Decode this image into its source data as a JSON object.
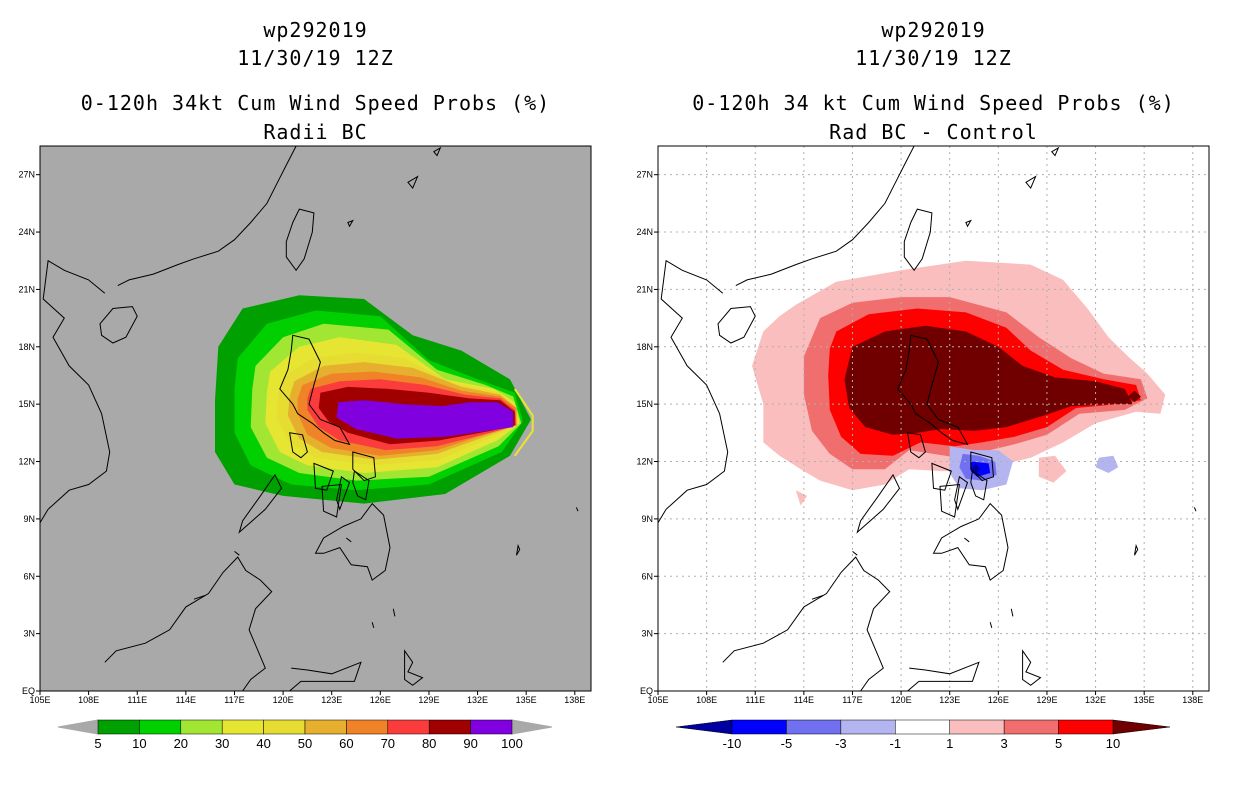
{
  "left_panel": {
    "storm_id": "wp292019",
    "date": "11/30/19 12Z",
    "title": "0-120h 34kt Cum Wind Speed Probs (%)",
    "subtitle": "Radii BC"
  },
  "right_panel": {
    "storm_id": "wp292019",
    "date": "11/30/19 12Z",
    "title": "0-120h 34 kt Cum Wind Speed Probs (%)",
    "subtitle": "Rad BC - Control"
  },
  "chart_data": [
    {
      "type": "heatmap",
      "title": "0-120h 34kt Cum Wind Speed Probs (%)",
      "subtitle": "Radii BC",
      "x_ticks": [
        "105E",
        "108E",
        "111E",
        "114E",
        "117E",
        "120E",
        "123E",
        "126E",
        "129E",
        "132E",
        "135E",
        "138E"
      ],
      "y_ticks": [
        "EQ",
        "3N",
        "6N",
        "9N",
        "12N",
        "15N",
        "18N",
        "21N",
        "24N",
        "27N"
      ],
      "xlim": [
        105,
        139
      ],
      "ylim": [
        0,
        28.5
      ],
      "background": "#a9a9a9",
      "levels": [
        5,
        10,
        20,
        30,
        40,
        50,
        60,
        70,
        80,
        90,
        100
      ],
      "colors": [
        "#00a000",
        "#00d000",
        "#a0e632",
        "#e6e632",
        "#e6dc32",
        "#e6af2d",
        "#f08228",
        "#fa3c3c",
        "#a00000",
        "#8000e0"
      ],
      "colorbar_labels": [
        "5",
        "10",
        "20",
        "30",
        "40",
        "50",
        "60",
        "70",
        "80",
        "90",
        "100"
      ]
    },
    {
      "type": "heatmap",
      "title": "0-120h 34 kt Cum Wind Speed Probs (%)",
      "subtitle": "Rad BC - Control",
      "x_ticks": [
        "105E",
        "108E",
        "111E",
        "114E",
        "117E",
        "120E",
        "123E",
        "126E",
        "129E",
        "132E",
        "135E",
        "138E"
      ],
      "y_ticks": [
        "EQ",
        "3N",
        "6N",
        "9N",
        "12N",
        "15N",
        "18N",
        "21N",
        "24N",
        "27N"
      ],
      "xlim": [
        105,
        139
      ],
      "ylim": [
        0,
        28.5
      ],
      "background": "#ffffff",
      "levels": [
        -10,
        -5,
        -3,
        -1,
        1,
        3,
        5,
        10
      ],
      "colors": [
        "#0000a0",
        "#0000ff",
        "#7070f0",
        "#b4b4f0",
        "#ffffff",
        "#fabebe",
        "#f06e6e",
        "#ff0000",
        "#700000"
      ],
      "colorbar_labels": [
        "-10",
        "-5",
        "-3",
        "-1",
        "1",
        "3",
        "5",
        "10"
      ]
    }
  ]
}
